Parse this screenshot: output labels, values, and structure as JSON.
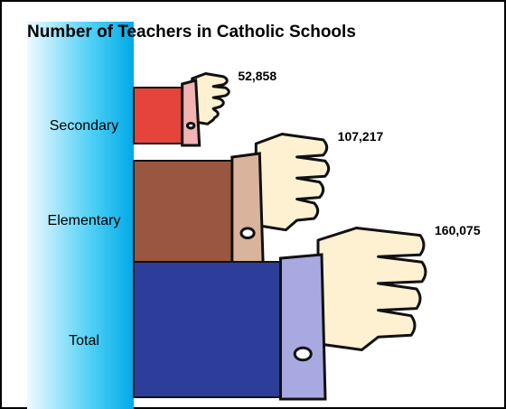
{
  "chart_data": {
    "type": "bar",
    "title": "Number of Teachers in Catholic Schools",
    "categories": [
      "Secondary",
      "Elementary",
      "Total"
    ],
    "values": [
      52858,
      107217,
      160075
    ],
    "value_labels": [
      "52,858",
      "107,217",
      "160,075"
    ],
    "colors": [
      "#e5443a",
      "#9b5640",
      "#2c3e99"
    ]
  }
}
